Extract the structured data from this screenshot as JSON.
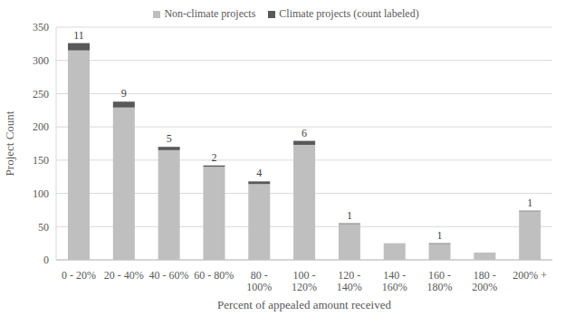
{
  "chart_data": {
    "type": "bar",
    "stacked": true,
    "categories": [
      "0 - 20%",
      "20 - 40%",
      "40 - 60%",
      "60 - 80%",
      "80 - 100%",
      "100 - 120%",
      "120 - 140%",
      "140 - 160%",
      "160 - 180%",
      "180 - 200%",
      "200% +"
    ],
    "series": [
      {
        "name": "Non-climate projects",
        "color": "#bfbfbf",
        "values": [
          315,
          229,
          165,
          140,
          114,
          173,
          54,
          25,
          24,
          11,
          73
        ]
      },
      {
        "name": "Climate projects (count labeled)",
        "color": "#595959",
        "values": [
          11,
          9,
          5,
          2,
          4,
          6,
          1,
          0,
          1,
          0,
          1
        ],
        "data_labels": true
      }
    ],
    "x_label": "Percent of appealed amount received",
    "y_label": "Project Count",
    "ylim": [
      0,
      350
    ],
    "yticks": [
      0,
      50,
      100,
      150,
      200,
      250,
      300,
      350
    ],
    "grid": true,
    "legend": "top"
  }
}
